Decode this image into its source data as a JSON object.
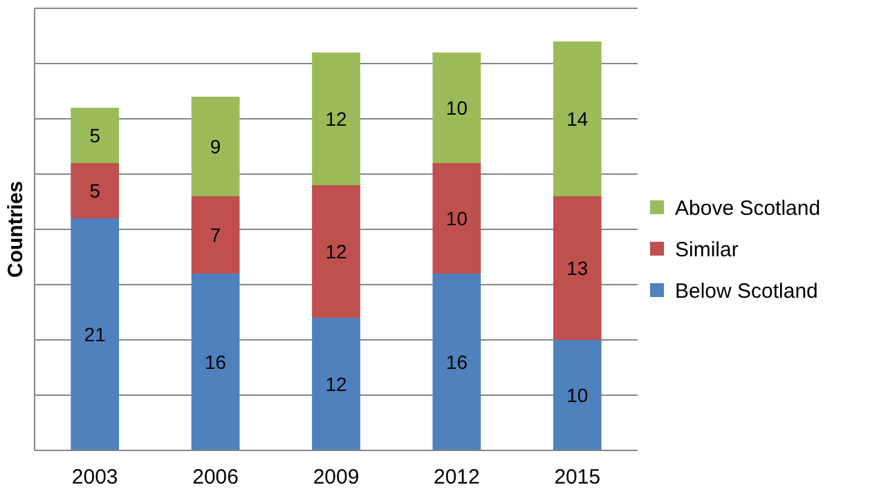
{
  "chart_data": {
    "type": "bar",
    "stacked": true,
    "ylabel": "Countries",
    "categories": [
      "2003",
      "2006",
      "2009",
      "2012",
      "2015"
    ],
    "series": [
      {
        "name": "Below Scotland",
        "color": "#4f81bd",
        "values": [
          21,
          16,
          12,
          16,
          10
        ]
      },
      {
        "name": "Similar",
        "color": "#c0504d",
        "values": [
          5,
          7,
          12,
          10,
          13
        ]
      },
      {
        "name": "Above Scotland",
        "color": "#9bbb59",
        "values": [
          5,
          9,
          12,
          10,
          14
        ]
      }
    ],
    "ylim": [
      0,
      40
    ],
    "yticks": [
      0,
      5,
      10,
      15,
      20,
      25,
      30,
      35,
      40
    ],
    "tick_labels": "x",
    "grid": "y",
    "data_labels": true,
    "legend": "right"
  }
}
